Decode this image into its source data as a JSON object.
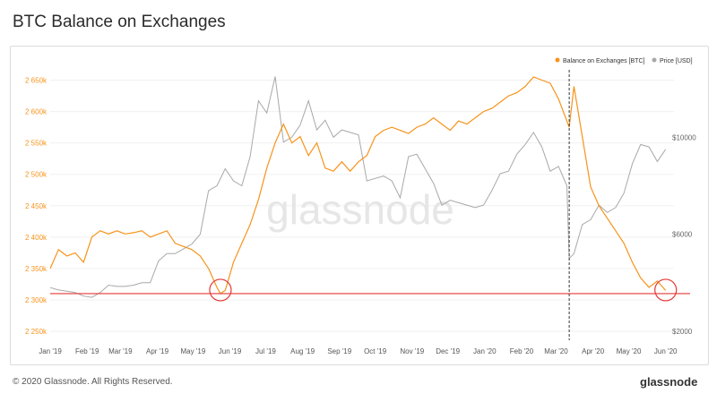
{
  "title": "BTC Balance on Exchanges",
  "footer": {
    "copyright": "© 2020 Glassnode. All Rights Reserved.",
    "logo": "glassnode"
  },
  "watermark": "glassnode",
  "colors": {
    "balance": "#f7931a",
    "price": "#a8a8a8",
    "support_line": "#e53935",
    "marker_circle": "#e53935"
  },
  "chart_data": {
    "type": "line",
    "title": "BTC Balance on Exchanges",
    "x_ticks": [
      "Jan '19",
      "Feb '19",
      "Mar '19",
      "Apr '19",
      "May '19",
      "Jun '19",
      "Jul '19",
      "Aug '19",
      "Sep '19",
      "Oct '19",
      "Nov '19",
      "Dec '19",
      "Jan '20",
      "Feb '20",
      "Mar '20",
      "Apr '20",
      "May '20",
      "Jun '20"
    ],
    "left_axis": {
      "ticks": [
        "2 250k",
        "2 300k",
        "2 350k",
        "2 400k",
        "2 450k",
        "2 500k",
        "2 550k",
        "2 600k",
        "2 650k"
      ],
      "ylim": [
        2250000,
        2675000
      ]
    },
    "right_axis": {
      "ticks": [
        "$2000",
        "$6000",
        "$10000"
      ],
      "ylim": [
        2000,
        13000
      ]
    },
    "legend": {
      "position": "top-right"
    },
    "series": [
      {
        "name": "Balance on Exchanges [BTC]",
        "axis": "left",
        "x": [
          "2019-01-01",
          "2019-01-08",
          "2019-01-15",
          "2019-01-22",
          "2019-01-29",
          "2019-02-05",
          "2019-02-12",
          "2019-02-19",
          "2019-02-26",
          "2019-03-05",
          "2019-03-12",
          "2019-03-19",
          "2019-03-26",
          "2019-04-02",
          "2019-04-09",
          "2019-04-16",
          "2019-04-23",
          "2019-04-30",
          "2019-05-07",
          "2019-05-14",
          "2019-05-21",
          "2019-05-24",
          "2019-05-28",
          "2019-06-04",
          "2019-06-11",
          "2019-06-18",
          "2019-06-25",
          "2019-07-02",
          "2019-07-09",
          "2019-07-16",
          "2019-07-23",
          "2019-07-30",
          "2019-08-06",
          "2019-08-13",
          "2019-08-20",
          "2019-08-27",
          "2019-09-03",
          "2019-09-10",
          "2019-09-17",
          "2019-09-24",
          "2019-10-01",
          "2019-10-08",
          "2019-10-15",
          "2019-10-22",
          "2019-10-29",
          "2019-11-05",
          "2019-11-12",
          "2019-11-19",
          "2019-11-26",
          "2019-12-03",
          "2019-12-10",
          "2019-12-17",
          "2019-12-24",
          "2019-12-31",
          "2020-01-07",
          "2020-01-14",
          "2020-01-21",
          "2020-01-28",
          "2020-02-04",
          "2020-02-11",
          "2020-02-18",
          "2020-02-25",
          "2020-03-03",
          "2020-03-08",
          "2020-03-12",
          "2020-03-16",
          "2020-03-23",
          "2020-03-30",
          "2020-04-06",
          "2020-04-13",
          "2020-04-20",
          "2020-04-27",
          "2020-05-04",
          "2020-05-11",
          "2020-05-18",
          "2020-05-25",
          "2020-06-01"
        ],
        "values": [
          2350000,
          2380000,
          2370000,
          2375000,
          2360000,
          2400000,
          2410000,
          2405000,
          2410000,
          2405000,
          2407000,
          2410000,
          2400000,
          2405000,
          2410000,
          2390000,
          2385000,
          2380000,
          2370000,
          2350000,
          2320000,
          2310000,
          2315000,
          2360000,
          2390000,
          2420000,
          2460000,
          2510000,
          2550000,
          2580000,
          2550000,
          2560000,
          2530000,
          2550000,
          2510000,
          2505000,
          2520000,
          2505000,
          2520000,
          2530000,
          2560000,
          2570000,
          2575000,
          2570000,
          2565000,
          2575000,
          2580000,
          2590000,
          2580000,
          2570000,
          2585000,
          2580000,
          2590000,
          2600000,
          2605000,
          2615000,
          2625000,
          2630000,
          2640000,
          2655000,
          2650000,
          2645000,
          2620000,
          2595000,
          2575000,
          2640000,
          2560000,
          2480000,
          2450000,
          2430000,
          2410000,
          2390000,
          2360000,
          2335000,
          2320000,
          2330000,
          2315000
        ]
      },
      {
        "name": "Price [USD]",
        "axis": "right",
        "x": [
          "2019-01-01",
          "2019-01-08",
          "2019-01-15",
          "2019-01-22",
          "2019-01-29",
          "2019-02-05",
          "2019-02-12",
          "2019-02-19",
          "2019-02-26",
          "2019-03-05",
          "2019-03-12",
          "2019-03-19",
          "2019-03-26",
          "2019-04-02",
          "2019-04-09",
          "2019-04-16",
          "2019-04-23",
          "2019-04-30",
          "2019-05-07",
          "2019-05-14",
          "2019-05-21",
          "2019-05-28",
          "2019-06-04",
          "2019-06-11",
          "2019-06-18",
          "2019-06-25",
          "2019-07-02",
          "2019-07-09",
          "2019-07-16",
          "2019-07-23",
          "2019-07-30",
          "2019-08-06",
          "2019-08-13",
          "2019-08-20",
          "2019-08-27",
          "2019-09-03",
          "2019-09-10",
          "2019-09-17",
          "2019-09-24",
          "2019-10-01",
          "2019-10-08",
          "2019-10-15",
          "2019-10-22",
          "2019-10-29",
          "2019-11-05",
          "2019-11-12",
          "2019-11-19",
          "2019-11-26",
          "2019-12-03",
          "2019-12-10",
          "2019-12-17",
          "2019-12-24",
          "2019-12-31",
          "2020-01-07",
          "2020-01-14",
          "2020-01-21",
          "2020-01-28",
          "2020-02-04",
          "2020-02-11",
          "2020-02-18",
          "2020-02-25",
          "2020-03-03",
          "2020-03-10",
          "2020-03-12",
          "2020-03-16",
          "2020-03-23",
          "2020-03-30",
          "2020-04-06",
          "2020-04-13",
          "2020-04-20",
          "2020-04-27",
          "2020-05-04",
          "2020-05-11",
          "2020-05-18",
          "2020-05-25",
          "2020-06-01"
        ],
        "values": [
          3800,
          3700,
          3650,
          3600,
          3450,
          3400,
          3600,
          3900,
          3850,
          3850,
          3900,
          4000,
          4000,
          4900,
          5200,
          5200,
          5400,
          5600,
          6000,
          7800,
          8000,
          8700,
          8200,
          8000,
          9200,
          11500,
          11000,
          12500,
          9800,
          10000,
          10500,
          11500,
          10300,
          10700,
          10000,
          10300,
          10200,
          10100,
          8200,
          8300,
          8400,
          8200,
          7500,
          9200,
          9300,
          8700,
          8100,
          7200,
          7400,
          7300,
          7200,
          7100,
          7200,
          7800,
          8500,
          8600,
          9300,
          9700,
          10200,
          9600,
          8600,
          8800,
          8000,
          5000,
          5200,
          6400,
          6600,
          7200,
          6900,
          7100,
          7700,
          8900,
          9700,
          9600,
          9000,
          9500
        ]
      }
    ],
    "reference_line": {
      "axis": "left",
      "value": 2310000
    },
    "event_marker": {
      "x": "2020-03-12",
      "style": "dashed"
    },
    "highlight_circles": [
      {
        "x": "2019-05-24",
        "y": 2310000
      },
      {
        "x": "2020-06-01",
        "y": 2310000
      }
    ]
  }
}
